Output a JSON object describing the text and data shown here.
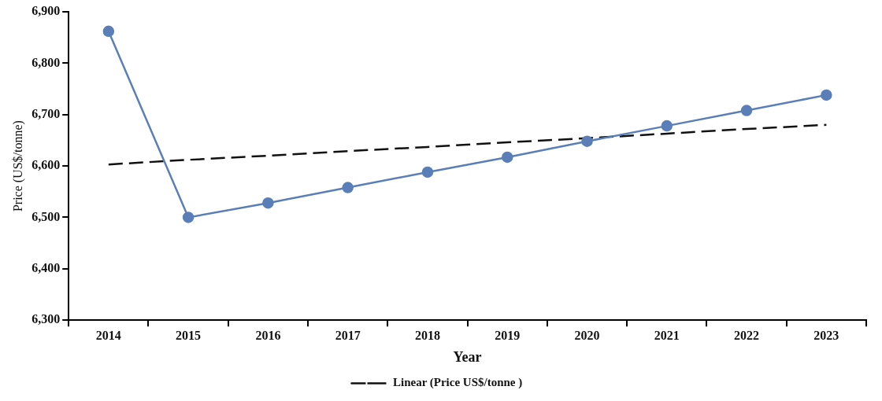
{
  "chart_data": {
    "type": "line",
    "xlabel": "Year",
    "ylabel": "Price (US$/tonne)",
    "categories": [
      "2014",
      "2015",
      "2016",
      "2017",
      "2018",
      "2019",
      "2020",
      "2021",
      "2022",
      "2023"
    ],
    "series": [
      {
        "color": "#5a7fb8",
        "values": [
          6862,
          6500,
          6528,
          6558,
          6588,
          6617,
          6648,
          6678,
          6708,
          6738
        ],
        "marker": "circle",
        "line_style": "solid"
      },
      {
        "name": "Linear (Price US$/tonne )",
        "color": "#111111",
        "values": [
          6603,
          6612,
          6620,
          6629,
          6637,
          6646,
          6654,
          6663,
          6672,
          6680
        ],
        "marker": "none",
        "line_style": "dashed"
      }
    ],
    "ylim": [
      6300,
      6900
    ],
    "yticks": [
      {
        "value": 6300,
        "label": "6,300"
      },
      {
        "value": 6400,
        "label": "6,400"
      },
      {
        "value": 6500,
        "label": "6,500"
      },
      {
        "value": 6600,
        "label": "6,600"
      },
      {
        "value": 6700,
        "label": "6,700"
      },
      {
        "value": 6800,
        "label": "6,800"
      },
      {
        "value": 6900,
        "label": "6,900"
      }
    ],
    "grid": false,
    "legend": "bottom"
  }
}
